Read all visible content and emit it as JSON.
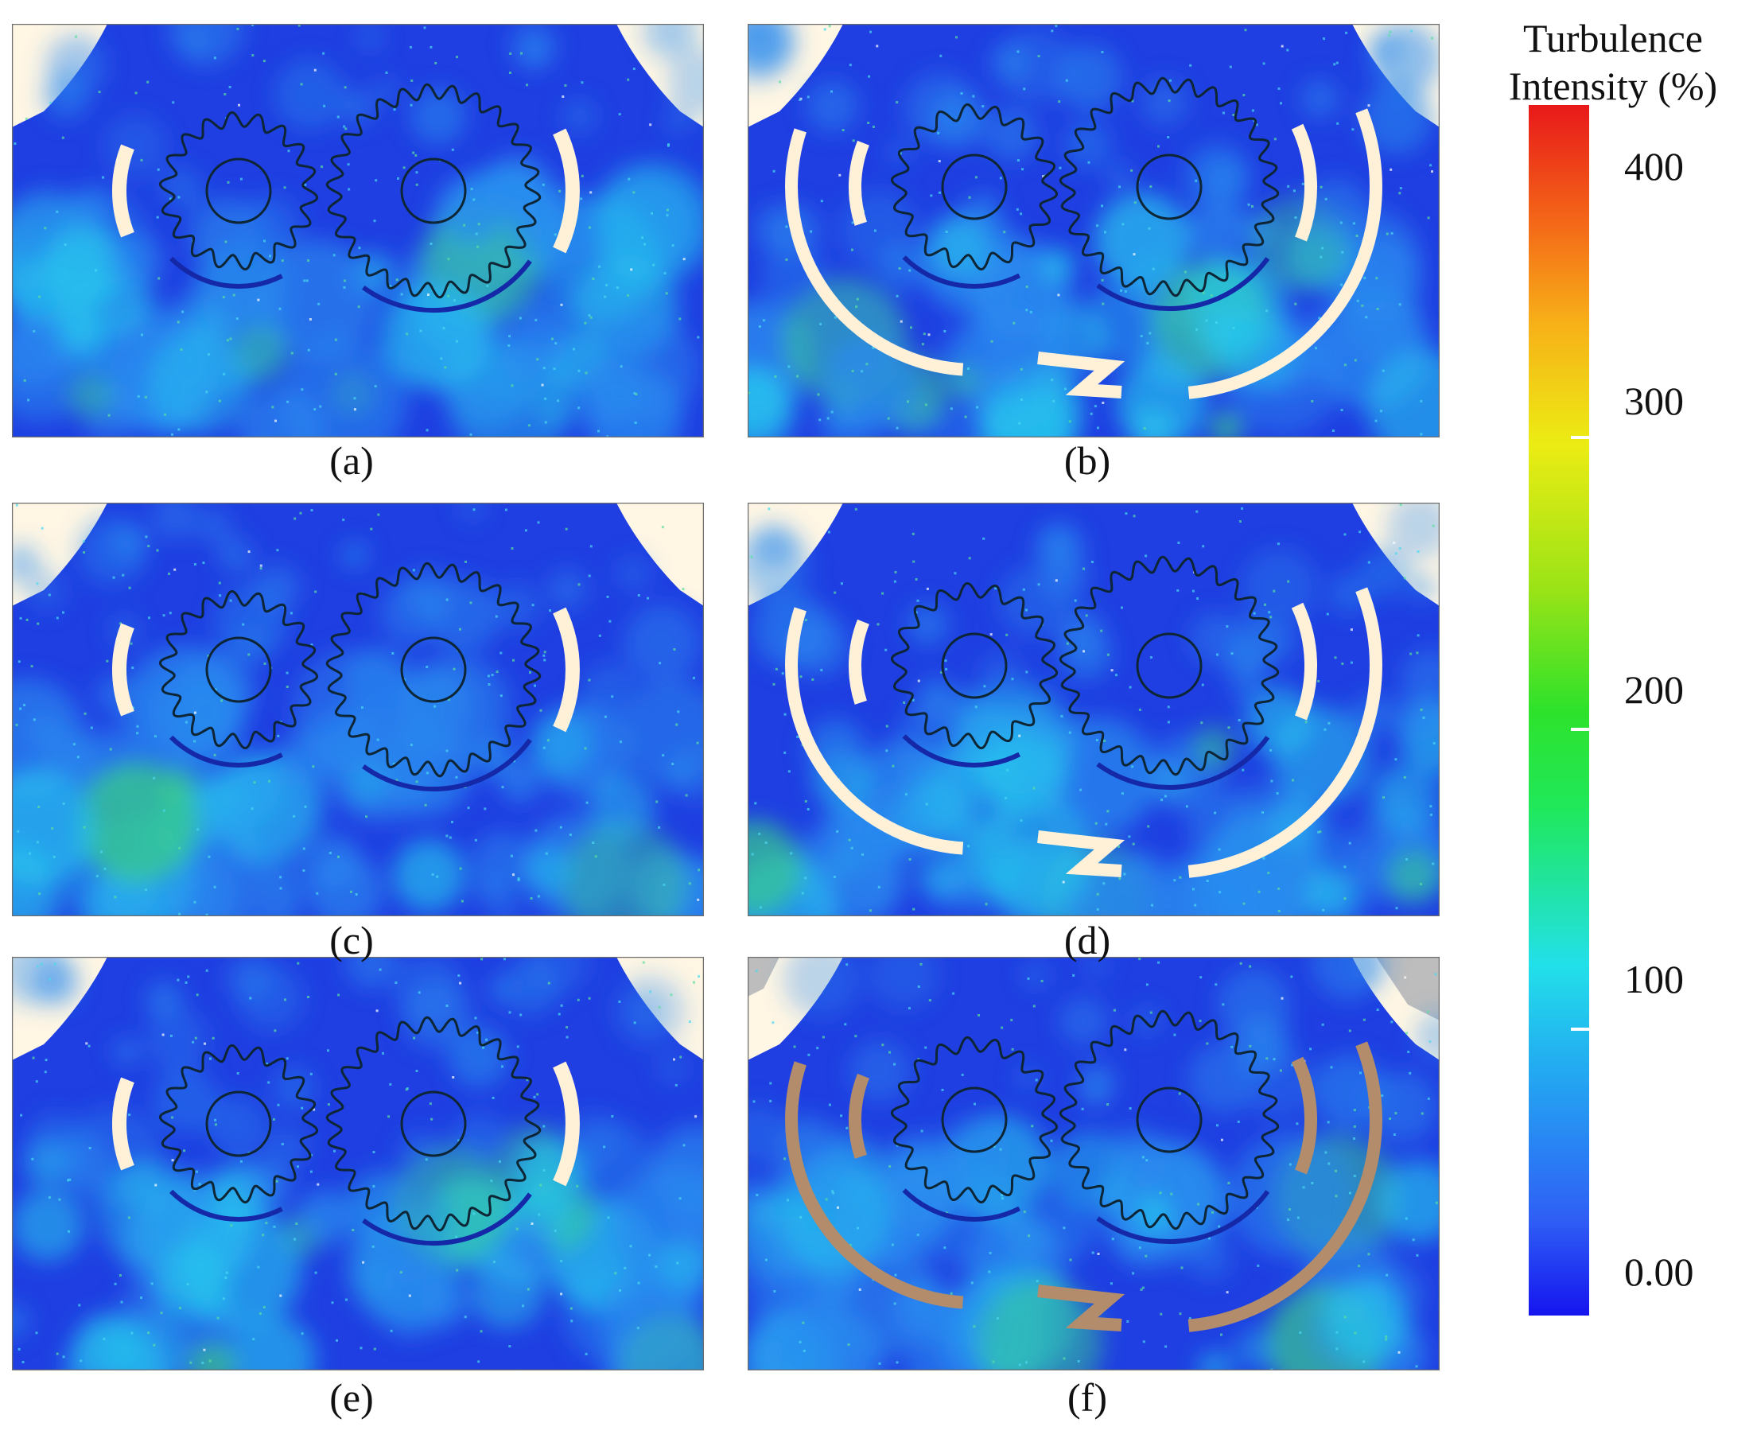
{
  "panels": [
    {
      "label": "(a)",
      "casing": "short",
      "arc_color": "#fff0d8"
    },
    {
      "label": "(b)",
      "casing": "full",
      "arc_color": "#fff0d8"
    },
    {
      "label": "(c)",
      "casing": "short",
      "arc_color": "#fff0d8"
    },
    {
      "label": "(d)",
      "casing": "full",
      "arc_color": "#fff0d8"
    },
    {
      "label": "(e)",
      "casing": "short",
      "arc_color": "#fff0d8"
    },
    {
      "label": "(f)",
      "casing": "full",
      "arc_color": "#b28c6b"
    }
  ],
  "colorbar": {
    "title_line1": "Turbulence",
    "title_line2": "Intensity (%)",
    "ticks": [
      {
        "label": "400",
        "value": 400
      },
      {
        "label": "300",
        "value": 300
      },
      {
        "label": "200",
        "value": 200
      },
      {
        "label": "100",
        "value": 100
      },
      {
        "label": "0.00",
        "value": 0
      }
    ],
    "min": 0,
    "max": 400
  },
  "colors": {
    "field_base": "#1f3fe2",
    "field_light": "#2a8bef",
    "field_cyan": "#27c6ee",
    "field_green": "#3ad08a",
    "background_void": "#fff6e4",
    "gear_outline": "#0d2535"
  }
}
